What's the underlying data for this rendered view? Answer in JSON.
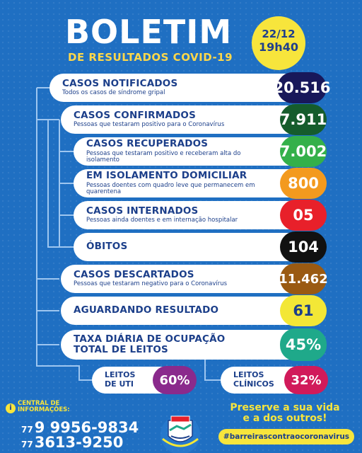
{
  "header": {
    "title": "BOLETIM",
    "subtitle": "DE RESULTADOS COVID-19",
    "date": "22/12",
    "time": "19h40"
  },
  "rows": [
    {
      "label": "CASOS NOTIFICADOS",
      "desc": "Todos os casos de síndrome gripal",
      "value": "20.516",
      "color": "#18185a"
    },
    {
      "label": "CASOS CONFIRMADOS",
      "desc": "Pessoas que testaram positivo para o Coronavírus",
      "value": "7.911",
      "color": "#155c2c"
    },
    {
      "label": "CASOS RECUPERADOS",
      "desc": "Pessoas que testaram positivo e receberam alta do isolamento",
      "value": "7.002",
      "color": "#34b04a"
    },
    {
      "label": "EM ISOLAMENTO DOMICILIAR",
      "desc": "Pessoas doentes com quadro leve que permanecem em quarentena",
      "value": "800",
      "color": "#f39a1e"
    },
    {
      "label": "CASOS INTERNADOS",
      "desc": "Pessoas ainda doentes e em internação hospitalar",
      "value": "05",
      "color": "#e8202a"
    },
    {
      "label": "ÓBITOS",
      "desc": "",
      "value": "104",
      "color": "#111111"
    },
    {
      "label": "CASOS DESCARTADOS",
      "desc": "Pessoas que testaram negativo para o Coronavírus",
      "value": "11.462",
      "color": "#9a5a12"
    },
    {
      "label": "AGUARDANDO RESULTADO",
      "desc": "",
      "value": "61",
      "color": "#f3e736",
      "value_color": "#1c3f8a"
    },
    {
      "label": "TAXA DIÁRIA DE OCUPAÇÃO",
      "label2": "TOTAL DE LEITOS",
      "desc": "",
      "value": "45%",
      "color": "#1fa98a"
    }
  ],
  "beds": [
    {
      "label": "LEITOS",
      "label2": "DE UTI",
      "value": "60%",
      "color": "#8a2a8c"
    },
    {
      "label": "LEITOS",
      "label2": "CLÍNICOS",
      "value": "32%",
      "color": "#d11a5a"
    }
  ],
  "footer": {
    "central_line1": "CENTRAL DE",
    "central_line2": "INFORMAÇÕES:",
    "phone1_ddd": "77",
    "phone1": "9 9956-9834",
    "phone2_ddd": "77",
    "phone2": "3613-9250",
    "preserve_line1": "Preserve a sua vida",
    "preserve_line2": "e a dos outros!",
    "hashtag": "#barreirascontraocoronavirus"
  },
  "icons": [
    "info-icon",
    "city-crest"
  ]
}
